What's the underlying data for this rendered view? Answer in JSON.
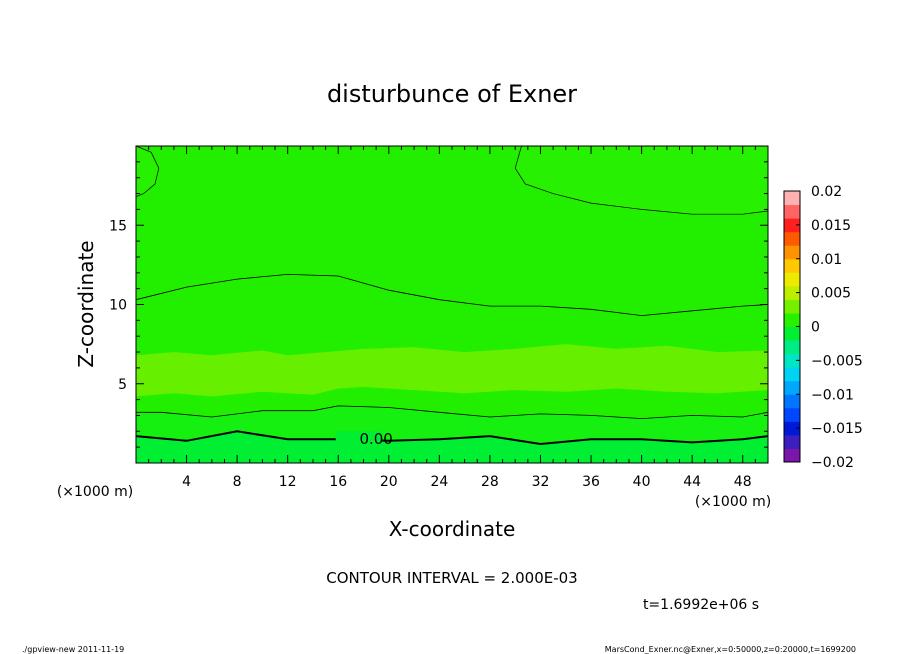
{
  "chart_data": {
    "type": "heatmap",
    "title": "disturbunce of Exner",
    "xlabel": "X-coordinate",
    "ylabel": "Z-coordinate",
    "x_unit_left": "(×1000 m)",
    "x_unit_right": "(×1000 m)",
    "xlim": [
      0,
      50
    ],
    "ylim": [
      0,
      20
    ],
    "x_ticks": [
      4,
      8,
      12,
      16,
      20,
      24,
      28,
      32,
      36,
      40,
      44,
      48
    ],
    "y_ticks": [
      5,
      10,
      15
    ],
    "contour_interval_text": "CONTOUR INTERVAL = 2.000E-03",
    "contour_label": "0.00",
    "time_text": "t=1.6992e+06 s",
    "colorbar": {
      "range": [
        -0.02,
        0.02
      ],
      "tick_labels": [
        "0.02",
        "0.015",
        "0.01",
        "0.005",
        "0",
        "−0.005",
        "−0.01",
        "−0.015",
        "−0.02"
      ],
      "tick_values": [
        0.02,
        0.015,
        0.01,
        0.005,
        0,
        -0.005,
        -0.01,
        -0.015,
        -0.02
      ],
      "colors": [
        "#7a16aa",
        "#3c1fbf",
        "#0019d6",
        "#0046ff",
        "#0076ff",
        "#00a7ff",
        "#00d2f2",
        "#00e6c4",
        "#00ec84",
        "#00ef32",
        "#27f000",
        "#77f000",
        "#bdee00",
        "#ecea00",
        "#ffc800",
        "#ff9200",
        "#ff5a00",
        "#ff1f1f",
        "#ff6464",
        "#ffb0b0"
      ]
    },
    "contours": [
      {
        "level": 0.0,
        "z_profile": [
          [
            0,
            1.7
          ],
          [
            4,
            1.4
          ],
          [
            8,
            2.0
          ],
          [
            12,
            1.5
          ],
          [
            16,
            1.5
          ],
          [
            20,
            1.4
          ],
          [
            24,
            1.5
          ],
          [
            28,
            1.7
          ],
          [
            32,
            1.2
          ],
          [
            36,
            1.5
          ],
          [
            40,
            1.5
          ],
          [
            44,
            1.3
          ],
          [
            48,
            1.5
          ],
          [
            50,
            1.7
          ]
        ]
      },
      {
        "level": 0.002,
        "z_profile": [
          [
            0,
            3.2
          ],
          [
            2,
            3.2
          ],
          [
            6,
            2.9
          ],
          [
            10,
            3.3
          ],
          [
            14,
            3.3
          ],
          [
            16,
            3.6
          ],
          [
            20,
            3.5
          ],
          [
            24,
            3.2
          ],
          [
            28,
            2.9
          ],
          [
            32,
            3.1
          ],
          [
            36,
            3.0
          ],
          [
            40,
            2.8
          ],
          [
            44,
            3.0
          ],
          [
            48,
            2.9
          ],
          [
            50,
            3.2
          ]
        ]
      },
      {
        "level": 0.004,
        "z_profile": [
          [
            0,
            10.3
          ],
          [
            4,
            11.1
          ],
          [
            8,
            11.6
          ],
          [
            12,
            11.9
          ],
          [
            16,
            11.8
          ],
          [
            20,
            10.9
          ],
          [
            24,
            10.3
          ],
          [
            28,
            9.9
          ],
          [
            32,
            9.9
          ],
          [
            36,
            9.7
          ],
          [
            40,
            9.3
          ],
          [
            44,
            9.6
          ],
          [
            48,
            9.9
          ],
          [
            50,
            10.0
          ]
        ]
      }
    ]
  },
  "footer": {
    "left": "./gpview-new   2011-11-19",
    "right": "MarsCond_Exner.nc@Exner,x=0:50000,z=0:20000,t=1699200"
  }
}
